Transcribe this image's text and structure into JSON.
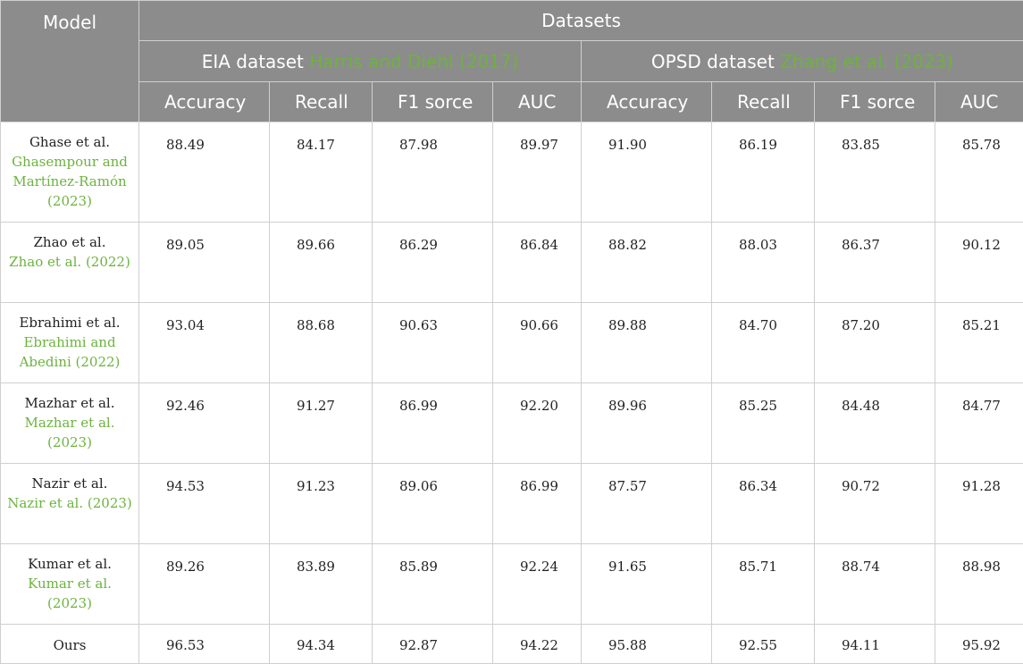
{
  "header": {
    "model": "Model",
    "datasets": "Datasets",
    "eia": {
      "name": "EIA dataset",
      "cite": "Harris and Diehl (2017)"
    },
    "opsd": {
      "name": "OPSD dataset",
      "cite": "Zhang et al. (2023)"
    },
    "metrics": [
      "Accuracy",
      "Recall",
      "F1 sorce",
      "AUC"
    ]
  },
  "rows": [
    {
      "model": "Ghase et al.",
      "cite": "Ghasempour and Martínez-Ramón (2023)",
      "values": [
        "88.49",
        "84.17",
        "87.98",
        "89.97",
        "91.90",
        "86.19",
        "83.85",
        "85.78"
      ]
    },
    {
      "model": "Zhao et al.",
      "cite": "Zhao et al. (2022)",
      "values": [
        "89.05",
        "89.66",
        "86.29",
        "86.84",
        "88.82",
        "88.03",
        "86.37",
        "90.12"
      ]
    },
    {
      "model": "Ebrahimi et al.",
      "cite": "Ebrahimi and Abedini (2022)",
      "values": [
        "93.04",
        "88.68",
        "90.63",
        "90.66",
        "89.88",
        "84.70",
        "87.20",
        "85.21"
      ]
    },
    {
      "model": "Mazhar et al.",
      "cite": "Mazhar et al. (2023)",
      "values": [
        "92.46",
        "91.27",
        "86.99",
        "92.20",
        "89.96",
        "85.25",
        "84.48",
        "84.77"
      ]
    },
    {
      "model": "Nazir et al.",
      "cite": "Nazir et al. (2023)",
      "values": [
        "94.53",
        "91.23",
        "89.06",
        "86.99",
        "87.57",
        "86.34",
        "90.72",
        "91.28"
      ]
    },
    {
      "model": "Kumar et al.",
      "cite": "Kumar et al. (2023)",
      "values": [
        "89.26",
        "83.89",
        "85.89",
        "92.24",
        "91.65",
        "85.71",
        "88.74",
        "88.98"
      ]
    },
    {
      "model": "Ours",
      "cite": "",
      "values": [
        "96.53",
        "94.34",
        "92.87",
        "94.22",
        "95.88",
        "92.55",
        "94.11",
        "95.92"
      ]
    }
  ]
}
